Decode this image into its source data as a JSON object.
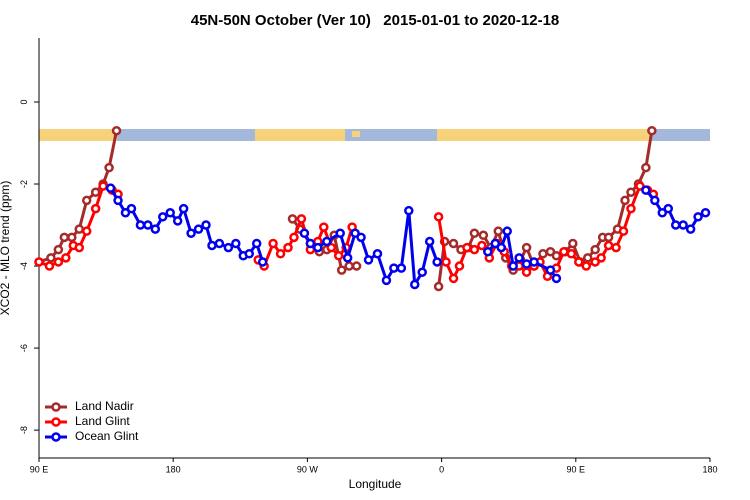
{
  "chart_data": {
    "type": "line",
    "title": "45N-50N October (Ver 10)   2015-01-01 to 2020-12-18",
    "x_label": "Longitude",
    "y_label": "XCO2 - MLO trend (ppm)",
    "xlim": [
      90,
      540
    ],
    "ylim": [
      -8.68,
      1.56
    ],
    "xticks": [
      {
        "value": 90,
        "label": "90 E"
      },
      {
        "value": 180,
        "label": "180"
      },
      {
        "value": 270,
        "label": "90 W"
      },
      {
        "value": 360,
        "label": "0"
      },
      {
        "value": 450,
        "label": "90 E"
      },
      {
        "value": 540,
        "label": "180"
      }
    ],
    "yticks": [
      0,
      -2,
      -4,
      -6,
      -8
    ],
    "legend": "bottom-left",
    "series": [
      {
        "name": "Land Nadir",
        "color": "#a52a2a",
        "x": [
          90,
          98,
          103,
          107,
          112,
          117,
          122,
          128,
          133,
          137,
          142,
          null,
          260,
          265,
          272,
          278,
          283,
          288,
          293,
          298,
          303,
          null,
          358,
          362,
          368,
          373,
          378,
          382,
          388,
          393,
          398,
          403,
          408,
          413,
          417,
          422,
          428,
          433,
          437,
          443,
          448,
          453,
          458,
          463,
          468,
          472,
          478,
          483,
          487,
          492,
          497,
          501
        ],
        "values": [
          -3.9,
          -3.8,
          -3.6,
          -3.3,
          -3.3,
          -3.1,
          -2.4,
          -2.2,
          -2.0,
          -1.6,
          -0.7,
          null,
          -2.85,
          -3.1,
          -3.45,
          -3.65,
          -3.6,
          -3.25,
          -4.1,
          -4.0,
          -4.0,
          null,
          -4.5,
          -3.4,
          -3.45,
          -3.6,
          -3.55,
          -3.2,
          -3.25,
          -3.55,
          -3.15,
          -3.8,
          -4.1,
          -3.85,
          -3.55,
          -4.0,
          -3.7,
          -3.65,
          -3.75,
          -3.65,
          -3.45,
          -3.9,
          -3.8,
          -3.6,
          -3.3,
          -3.3,
          -3.1,
          -2.4,
          -2.2,
          -2.0,
          -1.6,
          -0.7
        ]
      },
      {
        "name": "Land Glint",
        "color": "#ff0000",
        "x": [
          90,
          97,
          103,
          108,
          113,
          117,
          122,
          128,
          133,
          139,
          143,
          null,
          237,
          241,
          247,
          252,
          257,
          261,
          266,
          272,
          277,
          281,
          286,
          291,
          296,
          300,
          null,
          358,
          363,
          368,
          372,
          377,
          382,
          387,
          392,
          397,
          402,
          407,
          412,
          417,
          422,
          426,
          431,
          437,
          442,
          447,
          452,
          457,
          463,
          467,
          472,
          477,
          482,
          487,
          493,
          498,
          502
        ],
        "values": [
          -3.9,
          -4.0,
          -3.9,
          -3.8,
          -3.5,
          -3.55,
          -3.15,
          -2.6,
          -2.05,
          -2.15,
          -2.25,
          null,
          -3.85,
          -4.0,
          -3.45,
          -3.7,
          -3.55,
          -3.3,
          -2.85,
          -3.6,
          -3.4,
          -3.05,
          -3.55,
          -3.75,
          -3.55,
          -3.05,
          null,
          -2.8,
          -3.9,
          -4.3,
          -4.0,
          -3.55,
          -3.6,
          -3.5,
          -3.8,
          -3.45,
          -3.65,
          -4.0,
          -4.0,
          -4.15,
          -4.0,
          -3.9,
          -4.25,
          -4.05,
          -3.65,
          -3.7,
          -3.9,
          -4.0,
          -3.9,
          -3.8,
          -3.5,
          -3.55,
          -3.15,
          -2.6,
          -2.05,
          -2.15,
          -2.25
        ]
      },
      {
        "name": "Ocean Glint",
        "color": "#0000ee",
        "x": [
          138,
          143,
          148,
          152,
          158,
          163,
          168,
          173,
          178,
          183,
          187,
          192,
          197,
          202,
          206,
          211,
          217,
          222,
          227,
          231,
          236,
          240,
          null,
          268,
          272,
          277,
          283,
          292,
          297,
          302,
          306,
          311,
          317,
          323,
          328,
          333,
          338,
          342,
          347,
          352,
          357,
          null,
          391,
          396,
          400,
          404,
          408,
          412,
          417,
          422,
          433,
          437,
          null,
          497,
          503,
          508,
          512,
          517,
          522,
          527,
          532,
          537
        ],
        "values": [
          -2.1,
          -2.4,
          -2.7,
          -2.6,
          -3.0,
          -3.0,
          -3.1,
          -2.8,
          -2.7,
          -2.9,
          -2.6,
          -3.2,
          -3.1,
          -3.0,
          -3.5,
          -3.45,
          -3.55,
          -3.45,
          -3.75,
          -3.7,
          -3.45,
          -3.9,
          null,
          -3.2,
          -3.45,
          -3.55,
          -3.4,
          -3.2,
          -3.8,
          -3.2,
          -3.3,
          -3.85,
          -3.7,
          -4.35,
          -4.05,
          -4.05,
          -2.65,
          -4.45,
          -4.15,
          -3.4,
          -3.9,
          null,
          -3.65,
          -3.45,
          -3.55,
          -3.15,
          -4.0,
          -3.8,
          -3.95,
          -3.9,
          -4.1,
          -4.3,
          null,
          -2.15,
          -2.4,
          -2.7,
          -2.6,
          -3.0,
          -3.0,
          -3.1,
          -2.8,
          -2.7
        ]
      }
    ]
  }
}
